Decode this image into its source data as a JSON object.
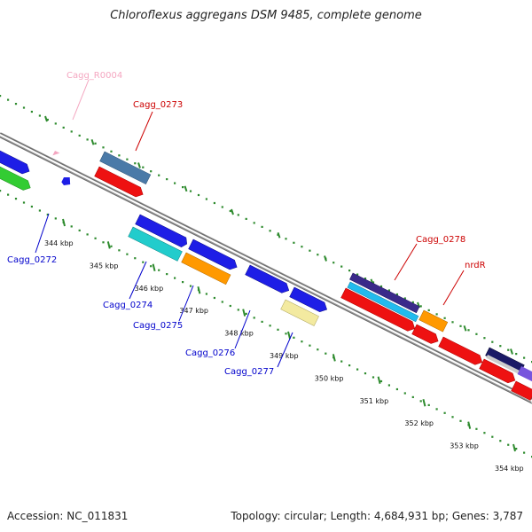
{
  "title": "Chloroflexus aggregans DSM 9485, complete genome",
  "footer": {
    "accession": "Accession: NC_011831",
    "topology": "Topology: circular; Length: 4,684,931 bp; Genes: 3,787"
  },
  "colors": {
    "backbone": "#888888",
    "dots": "#2e8b2e",
    "top_label": "#cc0000",
    "bottom_label": "#0000cc",
    "rna_label": "#f4a6c0"
  },
  "ticks": [
    {
      "label": "344 kbp"
    },
    {
      "label": "345 kbp"
    },
    {
      "label": "346 kbp"
    },
    {
      "label": "347 kbp"
    },
    {
      "label": "348 kbp"
    },
    {
      "label": "349 kbp"
    },
    {
      "label": "350 kbp"
    },
    {
      "label": "351 kbp"
    },
    {
      "label": "352 kbp"
    },
    {
      "label": "353 kbp"
    },
    {
      "label": "354 kbp"
    }
  ],
  "labels": [
    {
      "text": "Cagg_R0004",
      "color": "#f4a6c0"
    },
    {
      "text": "Cagg_0273",
      "color": "#cc0000"
    },
    {
      "text": "Cagg_0278",
      "color": "#cc0000"
    },
    {
      "text": "nrdR",
      "color": "#cc0000"
    },
    {
      "text": "Cagg_0272",
      "color": "#0000cc"
    },
    {
      "text": "Cagg_0274",
      "color": "#0000cc"
    },
    {
      "text": "Cagg_0275",
      "color": "#0000cc"
    },
    {
      "text": "Cagg_0276",
      "color": "#0000cc"
    },
    {
      "text": "Cagg_0277",
      "color": "#0000cc"
    }
  ]
}
